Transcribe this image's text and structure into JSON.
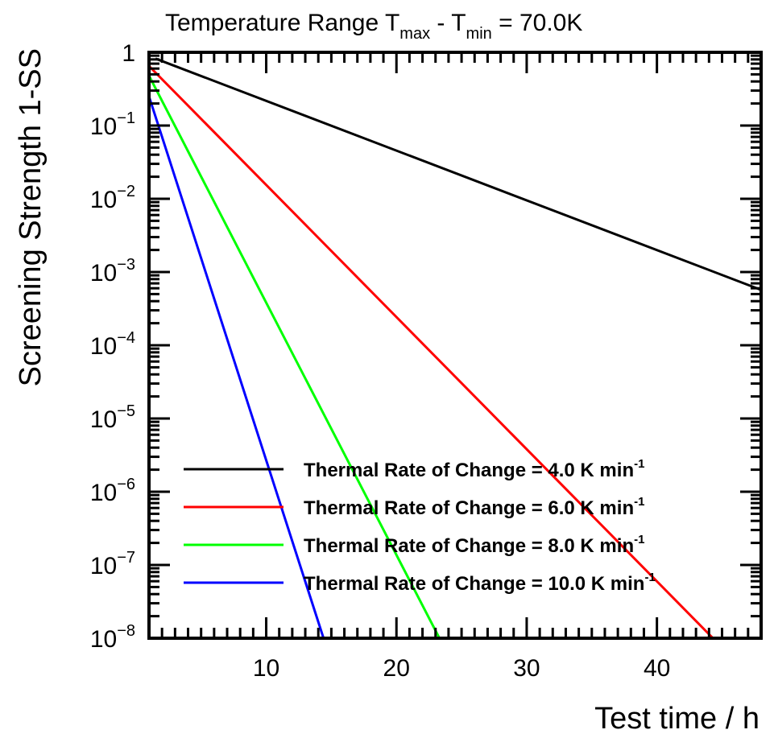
{
  "chart_data": {
    "type": "line",
    "title": {
      "prefix": "Temperature Range T",
      "sub1": "max",
      "mid": " - T",
      "sub2": "min",
      "suffix": " = 70.0K"
    },
    "xlabel": "Test time / h",
    "ylabel": "Screening Strength 1-SS",
    "xlim": [
      1,
      48
    ],
    "ylim": [
      1e-08,
      1
    ],
    "yscale": "log",
    "grid": false,
    "x_ticks": [
      "10",
      "20",
      "30",
      "40"
    ],
    "y_ticks": [
      {
        "base": "1",
        "exp": ""
      },
      {
        "base": "10",
        "exp": "−1"
      },
      {
        "base": "10",
        "exp": "−2"
      },
      {
        "base": "10",
        "exp": "−3"
      },
      {
        "base": "10",
        "exp": "−4"
      },
      {
        "base": "10",
        "exp": "−5"
      },
      {
        "base": "10",
        "exp": "−6"
      },
      {
        "base": "10",
        "exp": "−7"
      },
      {
        "base": "10",
        "exp": "−8"
      }
    ],
    "legend_position": "bottom-right",
    "series": [
      {
        "name": "Thermal Rate of Change = 4.0 K min",
        "name_exp": "-1",
        "color": "#000000",
        "x": [
          1.5,
          48
        ],
        "y": [
          0.82,
          0.00057
        ]
      },
      {
        "name": "Thermal Rate of Change = 6.0 K min",
        "name_exp": "-1",
        "color": "#ff0000",
        "x": [
          1.0,
          44.3
        ],
        "y": [
          0.65,
          1e-08
        ]
      },
      {
        "name": "Thermal Rate of Change = 8.0 K min",
        "name_exp": "-1",
        "color": "#00ff00",
        "x": [
          1.0,
          23.3
        ],
        "y": [
          0.48,
          1e-08
        ]
      },
      {
        "name": "Thermal Rate of Change = 10.0 K min",
        "name_exp": "-1",
        "color": "#0000ff",
        "x": [
          1.0,
          14.4
        ],
        "y": [
          0.25,
          1e-08
        ]
      }
    ]
  }
}
